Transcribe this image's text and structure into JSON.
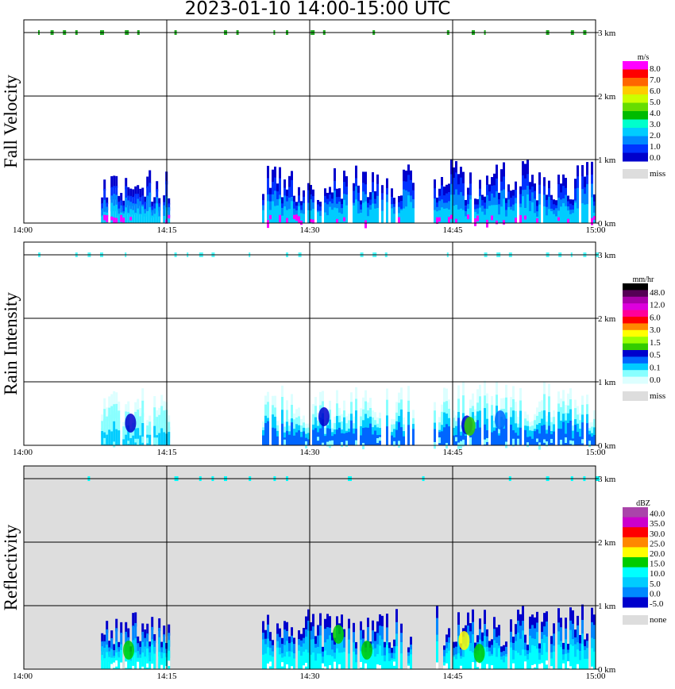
{
  "title": "2023-01-10  14:00-15:00 UTC",
  "chart_data": [
    {
      "type": "heatmap",
      "ylabel": "Fall Velocity",
      "x_ticks": [
        "14:00",
        "14:15",
        "14:30",
        "14:45",
        "15:00"
      ],
      "y_ticks": [
        "0 km",
        "1 km",
        "2 km",
        "3 km"
      ],
      "xlim_minutes": [
        0,
        60
      ],
      "ylim_km": [
        0,
        3.2
      ],
      "grid": true,
      "background": "#ffffff",
      "legend": {
        "unit": "m/s",
        "labels": [
          "8.0",
          "7.0",
          "6.0",
          "5.0",
          "4.0",
          "3.0",
          "2.0",
          "1.0",
          "0.0"
        ],
        "colors": [
          "#ff00ff",
          "#ff0000",
          "#ff6600",
          "#ffcc00",
          "#ccff00",
          "#66dd00",
          "#00bb00",
          "#00ffcc",
          "#00ccff",
          "#0088ff",
          "#0033ff",
          "#0000cc"
        ],
        "missing_label": "miss",
        "missing_color": "#dddddd"
      },
      "echoes": [
        {
          "t0": 8.1,
          "t1": 15.3,
          "top_km": 0.9,
          "low_color": "#ff00ff",
          "colors": [
            "#0000cc",
            "#0033ff",
            "#0088ff",
            "#00ccff"
          ]
        },
        {
          "t0": 25.0,
          "t1": 41.0,
          "top_km": 0.95,
          "low_color": "#ff00ff",
          "colors": [
            "#0000cc",
            "#0033ff",
            "#0088ff",
            "#00ccff"
          ]
        },
        {
          "t0": 43.0,
          "t1": 60.0,
          "top_km": 1.02,
          "low_color": "#ff00ff",
          "colors": [
            "#0000cc",
            "#0033ff",
            "#0088ff",
            "#00ccff"
          ]
        }
      ],
      "top_marks_color": "#22aa22"
    },
    {
      "type": "heatmap",
      "ylabel": "Rain Intensity",
      "x_ticks": [
        "14:00",
        "14:15",
        "14:30",
        "14:45",
        "15:00"
      ],
      "y_ticks": [
        "0 km",
        "1 km",
        "2 km",
        "3 km"
      ],
      "xlim_minutes": [
        0,
        60
      ],
      "ylim_km": [
        0,
        3.2
      ],
      "grid": true,
      "background": "#ffffff",
      "legend": {
        "unit": "mm/hr",
        "labels": [
          "48.0",
          "12.0",
          "6.0",
          "3.0",
          "1.5",
          "0.5",
          "0.1",
          "0.0"
        ],
        "colors": [
          "#000000",
          "#550055",
          "#aa00aa",
          "#dd00dd",
          "#ff0099",
          "#ff0000",
          "#ff8800",
          "#ffff00",
          "#99ff00",
          "#33cc00",
          "#0000cc",
          "#0066ff",
          "#00ccff",
          "#88ffff",
          "#ddffff"
        ],
        "missing_label": "miss",
        "missing_color": "#dddddd"
      },
      "echoes": [
        {
          "t0": 8.1,
          "t1": 15.3,
          "top_km": 0.9,
          "low_color": "#88ffff",
          "colors": [
            "#ddffff",
            "#88ffff",
            "#88ffff",
            "#00ccff"
          ]
        },
        {
          "t0": 25.0,
          "t1": 41.0,
          "top_km": 0.95,
          "low_color": "#88ffff",
          "colors": [
            "#ddffff",
            "#88ffff",
            "#00ccff",
            "#0066ff"
          ]
        },
        {
          "t0": 43.0,
          "t1": 60.0,
          "top_km": 1.02,
          "low_color": "#88ffff",
          "colors": [
            "#ddffff",
            "#88ffff",
            "#00ccff",
            "#0066ff"
          ]
        }
      ],
      "cores": [
        {
          "t": 11.2,
          "km": 0.35,
          "color": "#0000cc"
        },
        {
          "t": 31.5,
          "km": 0.45,
          "color": "#0000cc"
        },
        {
          "t": 46.5,
          "km": 0.32,
          "color": "#0000cc"
        },
        {
          "t": 46.8,
          "km": 0.3,
          "color": "#33cc00"
        },
        {
          "t": 50.0,
          "km": 0.4,
          "color": "#0066ff"
        }
      ],
      "top_marks_color": "#55ffff"
    },
    {
      "type": "heatmap",
      "ylabel": "Reflectivity",
      "x_ticks": [
        "14:00",
        "14:15",
        "14:30",
        "14:45",
        "15:00"
      ],
      "y_ticks": [
        "0 km",
        "1 km",
        "2 km",
        "3 km"
      ],
      "xlim_minutes": [
        0,
        60
      ],
      "ylim_km": [
        0,
        3.2
      ],
      "grid": true,
      "background": "#dddddd",
      "legend": {
        "unit": "dBZ",
        "labels": [
          "40.0",
          "35.0",
          "30.0",
          "25.0",
          "20.0",
          "15.0",
          "10.0",
          "5.0",
          "0.0",
          "-5.0"
        ],
        "colors": [
          "#aa44aa",
          "#cc00cc",
          "#ff0000",
          "#ff8800",
          "#ffff00",
          "#00cc00",
          "#00ffff",
          "#00ccff",
          "#0088ff",
          "#0000cc"
        ],
        "missing_label": "none",
        "missing_color": "#dddddd"
      },
      "echoes": [
        {
          "t0": 8.1,
          "t1": 15.3,
          "top_km": 0.9,
          "low_color": "#ffffff",
          "colors": [
            "#0000cc",
            "#0088ff",
            "#00ccff",
            "#00ffff"
          ]
        },
        {
          "t0": 25.0,
          "t1": 41.0,
          "top_km": 0.95,
          "low_color": "#ffffff",
          "colors": [
            "#0000cc",
            "#0088ff",
            "#00ccff",
            "#00ffff"
          ]
        },
        {
          "t0": 43.0,
          "t1": 60.0,
          "top_km": 1.02,
          "low_color": "#ffffff",
          "colors": [
            "#0000cc",
            "#0088ff",
            "#00ccff",
            "#00ffff"
          ]
        }
      ],
      "cores": [
        {
          "t": 11.0,
          "km": 0.3,
          "color": "#00cc00"
        },
        {
          "t": 33.0,
          "km": 0.55,
          "color": "#00cc00"
        },
        {
          "t": 46.2,
          "km": 0.45,
          "color": "#ffff00"
        },
        {
          "t": 47.8,
          "km": 0.25,
          "color": "#00cc00"
        },
        {
          "t": 36.0,
          "km": 0.3,
          "color": "#00cc00"
        }
      ],
      "top_marks_color": "#00ffff"
    }
  ]
}
